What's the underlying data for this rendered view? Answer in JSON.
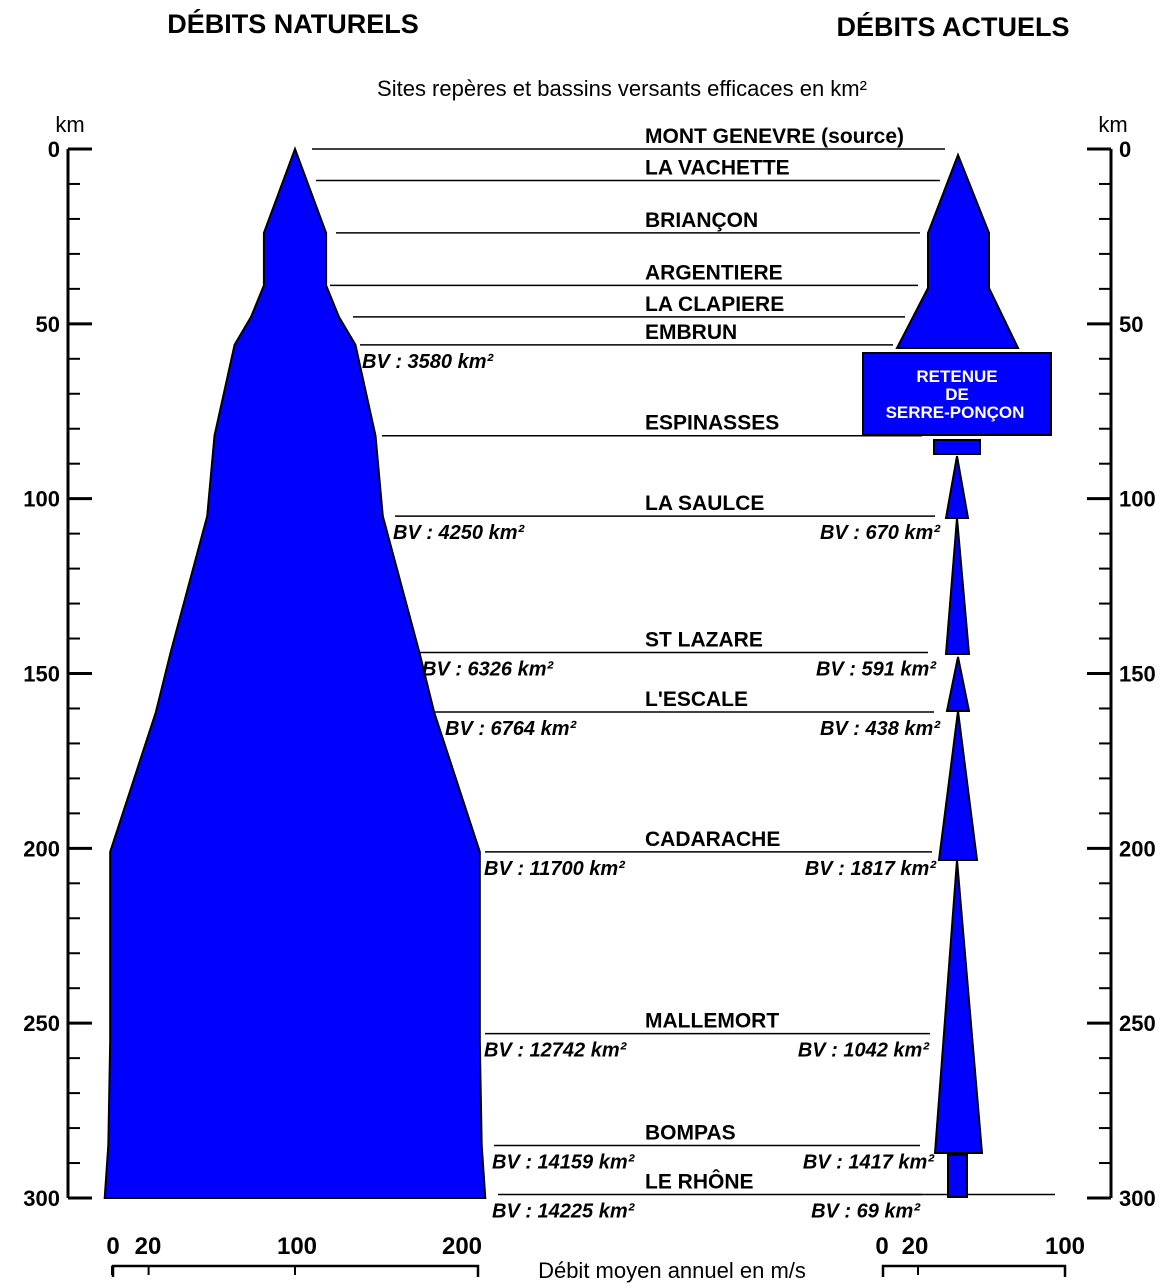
{
  "titles": {
    "natural": "DÉBITS NATURELS",
    "current": "DÉBITS ACTUELS",
    "subtitle": "Sites repères et bassins versants efficaces en km²"
  },
  "axis": {
    "unit": "km",
    "ticks": [
      "0",
      "50",
      "100",
      "150",
      "200",
      "250",
      "300"
    ],
    "km_range": [
      0,
      300
    ]
  },
  "sites": [
    {
      "name": "MONT GENEVRE (source)",
      "km": 0
    },
    {
      "name": "LA VACHETTE",
      "km": 9
    },
    {
      "name": "BRIANÇON",
      "km": 24
    },
    {
      "name": "ARGENTIERE",
      "km": 39
    },
    {
      "name": "LA CLAPIERE",
      "km": 48
    },
    {
      "name": "EMBRUN",
      "km": 56
    },
    {
      "name": "ESPINASSES",
      "km": 82
    },
    {
      "name": "LA SAULCE",
      "km": 105
    },
    {
      "name": "ST LAZARE",
      "km": 144
    },
    {
      "name": "L'ESCALE",
      "km": 161
    },
    {
      "name": "CADARACHE",
      "km": 201
    },
    {
      "name": "MALLEMORT",
      "km": 253
    },
    {
      "name": "BOMPAS",
      "km": 285
    },
    {
      "name": "LE RHÔNE",
      "km": 299
    }
  ],
  "bv_natural": [
    {
      "label": "BV : 3580 km²",
      "km": 56
    },
    {
      "label": "BV : 4250 km²",
      "km": 105
    },
    {
      "label": "BV : 6326 km²",
      "km": 144
    },
    {
      "label": "BV : 6764 km²",
      "km": 161
    },
    {
      "label": "BV : 11700 km²",
      "km": 201
    },
    {
      "label": "BV : 12742 km²",
      "km": 253
    },
    {
      "label": "BV : 14159 km²",
      "km": 285
    },
    {
      "label": "BV : 14225 km²",
      "km": 299
    }
  ],
  "bv_current": [
    {
      "label": "BV : 670 km²",
      "km": 105
    },
    {
      "label": "BV : 591 km²",
      "km": 144
    },
    {
      "label": "BV : 438 km²",
      "km": 161
    },
    {
      "label": "BV : 1817 km²",
      "km": 201
    },
    {
      "label": "BV : 1042 km²",
      "km": 253
    },
    {
      "label": "BV : 1417 km²",
      "km": 285
    },
    {
      "label": "BV : 69 km²",
      "km": 299
    }
  ],
  "reservoir": {
    "line1": "RETENUE",
    "line2": "DE",
    "line3": "SERRE-PONÇON",
    "km_range": [
      59,
      82
    ]
  },
  "x_axis": {
    "label": "Débit moyen annuel en m/s",
    "natural_ticks": [
      "0",
      "20",
      "100",
      "200"
    ],
    "current_ticks": [
      "0",
      "20",
      "100"
    ]
  },
  "colors": {
    "fill": "#0000ff",
    "stroke": "#000000"
  },
  "natural_profile": {
    "description_unit": "half-width in m3/s (symmetric about 100)",
    "points": [
      {
        "km": 0,
        "q": 0
      },
      {
        "km": 24,
        "q": 17
      },
      {
        "km": 39,
        "q": 17
      },
      {
        "km": 48,
        "q": 24
      },
      {
        "km": 56,
        "q": 33
      },
      {
        "km": 82,
        "q": 44
      },
      {
        "km": 105,
        "q": 48
      },
      {
        "km": 144,
        "q": 68
      },
      {
        "km": 161,
        "q": 76
      },
      {
        "km": 201,
        "q": 101
      },
      {
        "km": 255,
        "q": 101
      },
      {
        "km": 285,
        "q": 102
      },
      {
        "km": 300,
        "q": 104
      }
    ]
  }
}
